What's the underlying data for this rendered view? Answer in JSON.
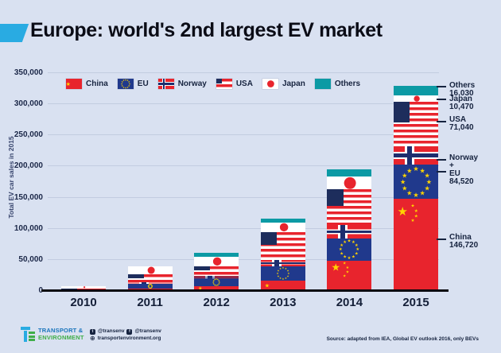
{
  "header": {
    "title": "Europe: world's 2nd largest EV market"
  },
  "colors": {
    "background": "#d9e1f1",
    "accent_blue": "#29abe2",
    "china_red": "#e8242d",
    "eu_blue": "#20398c",
    "norway_navy": "#1d2d6e",
    "usa_canton": "#1d2d5c",
    "others_teal": "#0c9aa4",
    "star_gold": "#ffd400",
    "text_navy": "#16233f",
    "logo_blue": "#1b75bc",
    "logo_green": "#3fae49"
  },
  "chart_data": {
    "type": "bar",
    "stacked": true,
    "ylabel": "Total EV car sales in 2015",
    "ylim": [
      0,
      350000
    ],
    "ytick_step": 50000,
    "yticks": [
      "0",
      "50,000",
      "100,000",
      "150,000",
      "200,000",
      "250,000",
      "300,000",
      "350,000"
    ],
    "categories": [
      "2010",
      "2011",
      "2012",
      "2013",
      "2014",
      "2015"
    ],
    "series": [
      {
        "name": "China",
        "values": [
          500,
          2200,
          6400,
          14900,
          46900,
          146720
        ]
      },
      {
        "name": "EU",
        "values": [
          700,
          7700,
          12800,
          23400,
          36100,
          55000
        ]
      },
      {
        "name": "Norway",
        "values": [
          400,
          2900,
          4200,
          10600,
          21300,
          29520
        ]
      },
      {
        "name": "USA",
        "values": [
          1200,
          12800,
          14900,
          44700,
          57500,
          71040
        ]
      },
      {
        "name": "Japan",
        "values": [
          3200,
          12800,
          14900,
          14900,
          21200,
          10470
        ]
      },
      {
        "name": "Others",
        "values": [
          0,
          0,
          6400,
          6400,
          10700,
          16030
        ]
      }
    ],
    "legend": [
      "China",
      "EU",
      "Norway",
      "USA",
      "Japan",
      "Others"
    ],
    "legend_position": "top-left-inside",
    "grid": true,
    "annotations": [
      {
        "label": "Others",
        "value": "16,030"
      },
      {
        "label": "Japan",
        "value": "10,470"
      },
      {
        "label": "USA",
        "value": "71,040"
      },
      {
        "label": "Norway\n+\nEU",
        "value": "84,520"
      },
      {
        "label": "China",
        "value": "146,720"
      }
    ]
  },
  "footer": {
    "logo_line1": "TRANSPORT &",
    "logo_line2": "ENVIRONMENT",
    "social_twitter": "@transenv",
    "social_facebook": "@transenv",
    "website": "transportenvironment.org",
    "source": "Source: adapted from IEA, Global EV outlook 2016, only BEVs"
  }
}
